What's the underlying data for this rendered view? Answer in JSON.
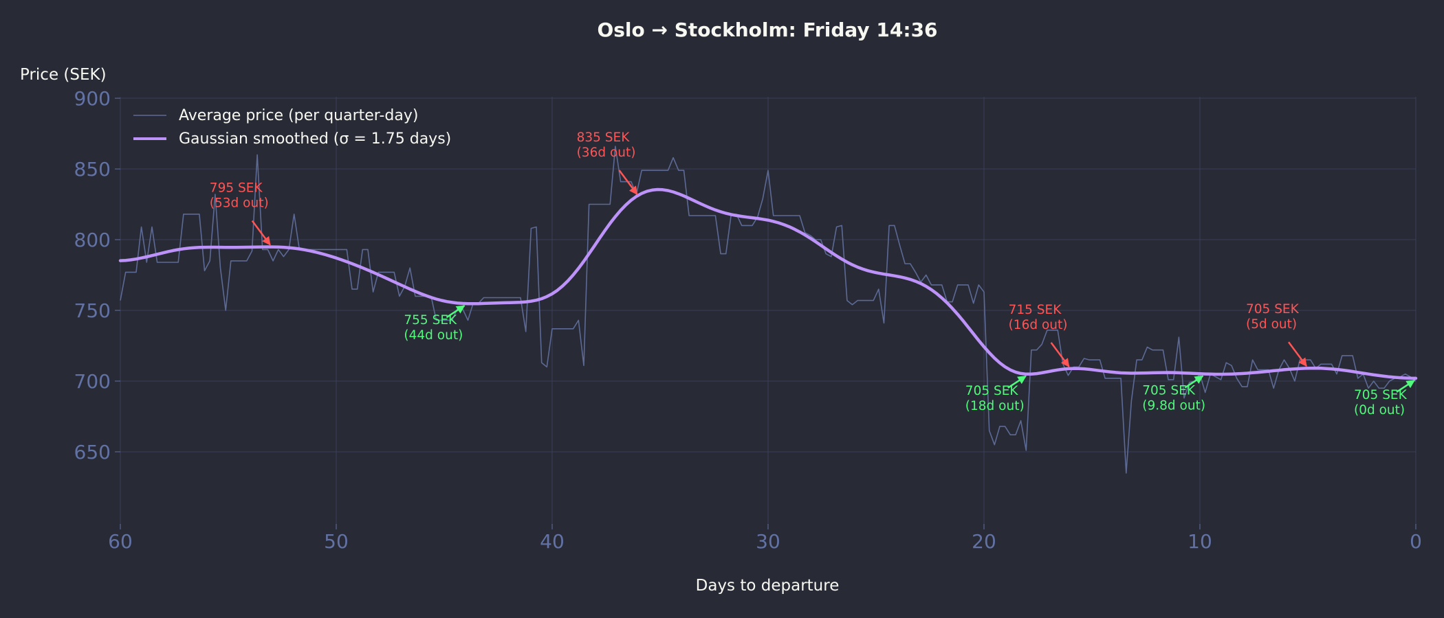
{
  "chart_data": {
    "type": "line",
    "title": "Oslo → Stockholm: Friday 14:36",
    "xlabel": "Days to departure",
    "ylabel": "Price (SEK)",
    "xlim": [
      60,
      0
    ],
    "ylim": [
      599,
      901
    ],
    "x_ticks": [
      60,
      50,
      40,
      30,
      20,
      10,
      0
    ],
    "y_ticks": [
      650,
      700,
      750,
      800,
      850,
      900
    ],
    "grid": true,
    "legend_position": "top-left",
    "colors": {
      "background": "#282a36",
      "grid": "#3a3f55",
      "tick": "#6272a4",
      "text": "#f8f8f2",
      "raw_line": "#5c6a95",
      "smoothed_line": "#bd93f9",
      "peak": "#ff5555",
      "trough": "#50fa7b"
    },
    "sample_step_days": 0.25,
    "smoothing_sigma_days": 1.75,
    "series": [
      {
        "name": "Average price (per quarter-day)",
        "x_start": 60,
        "x_end": 0,
        "values": [
          757,
          777,
          777,
          777,
          809,
          784,
          809,
          784,
          784,
          784,
          784,
          784,
          818,
          818,
          818,
          818,
          778,
          785,
          832,
          780,
          750,
          785,
          785,
          785,
          785,
          792,
          860,
          793,
          793,
          785,
          793,
          788,
          793,
          818,
          793,
          793,
          793,
          793,
          793,
          793,
          793,
          793,
          793,
          793,
          765,
          765,
          793,
          793,
          763,
          777,
          777,
          777,
          777,
          760,
          767,
          780,
          760,
          760,
          760,
          760,
          743,
          743,
          743,
          743,
          751,
          751,
          743,
          755,
          755,
          759,
          759,
          759,
          759,
          759,
          759,
          759,
          759,
          735,
          808,
          809,
          713,
          710,
          737,
          737,
          737,
          737,
          737,
          743,
          711,
          825,
          825,
          825,
          825,
          825,
          866,
          841,
          841,
          841,
          832,
          849,
          849,
          849,
          849,
          849,
          849,
          858,
          849,
          849,
          817,
          817,
          817,
          817,
          817,
          817,
          790,
          790,
          818,
          818,
          810,
          810,
          810,
          816,
          829,
          849,
          817,
          817,
          817,
          817,
          817,
          817,
          805,
          803,
          800,
          800,
          790,
          788,
          809,
          810,
          757,
          754,
          757,
          757,
          757,
          757,
          765,
          741,
          810,
          810,
          796,
          783,
          783,
          777,
          770,
          775,
          768,
          768,
          768,
          756,
          756,
          768,
          768,
          768,
          755,
          768,
          763,
          665,
          655,
          668,
          668,
          662,
          662,
          672,
          651,
          722,
          722,
          726,
          736,
          736,
          736,
          712,
          704,
          710,
          710,
          716,
          715,
          715,
          715,
          702,
          702,
          702,
          702,
          635,
          686,
          715,
          715,
          724,
          722,
          722,
          722,
          701,
          701,
          731,
          688,
          699,
          700,
          705,
          692,
          705,
          703,
          701,
          713,
          711,
          702,
          696,
          696,
          715,
          708,
          708,
          708,
          695,
          708,
          715,
          709,
          700,
          715,
          715,
          715,
          709,
          712,
          712,
          712,
          705,
          718,
          718,
          718,
          702,
          705,
          695,
          700,
          695,
          695,
          700,
          702,
          703,
          705,
          703,
          700
        ]
      }
    ],
    "smoothed_series": {
      "name": "Gaussian smoothed (σ = 1.75 days)"
    },
    "annotations": [
      {
        "kind": "peak",
        "price": 795,
        "days": 53,
        "text_line1": "795 SEK",
        "text_line2": "(53d out)"
      },
      {
        "kind": "trough",
        "price": 755,
        "days": 44,
        "text_line1": "755 SEK",
        "text_line2": "(44d out)"
      },
      {
        "kind": "peak",
        "price": 835,
        "days": 36,
        "text_line1": "835 SEK",
        "text_line2": "(36d out)"
      },
      {
        "kind": "trough",
        "price": 705,
        "days": 18,
        "text_line1": "705 SEK",
        "text_line2": "(18d out)"
      },
      {
        "kind": "peak",
        "price": 715,
        "days": 16,
        "text_line1": "715 SEK",
        "text_line2": "(16d out)"
      },
      {
        "kind": "trough",
        "price": 705,
        "days": 9.8,
        "text_line1": "705 SEK",
        "text_line2": "(9.8d out)"
      },
      {
        "kind": "peak",
        "price": 705,
        "days": 5,
        "text_line1": "705 SEK",
        "text_line2": "(5d out)"
      },
      {
        "kind": "trough",
        "price": 705,
        "days": 0,
        "text_line1": "705 SEK",
        "text_line2": "(0d out)"
      }
    ]
  }
}
